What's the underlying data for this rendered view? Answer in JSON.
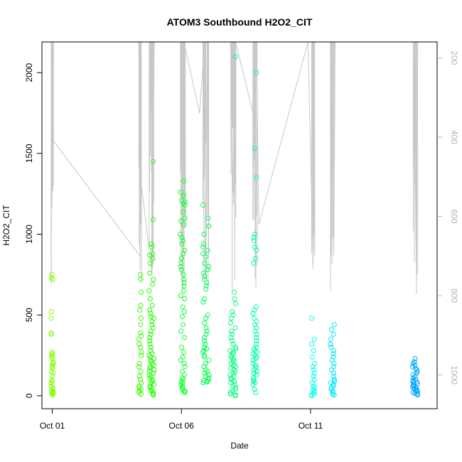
{
  "chart_data": {
    "type": "scatter",
    "title": "ATOM3 Southbound H2O2_CIT",
    "xlabel": "Date",
    "ylabel": "H2O2_CIT",
    "x_ticks": [
      {
        "label": "Oct 01",
        "day": 1.0
      },
      {
        "label": "Oct 06",
        "day": 6.0
      },
      {
        "label": "Oct 11",
        "day": 11.0
      }
    ],
    "xlim_days": [
      0.6,
      15.9
    ],
    "ylim": [
      -80,
      2190
    ],
    "y_ticks": [
      0,
      500,
      1000,
      1500,
      2000
    ],
    "y2_ticks": [
      200,
      400,
      600,
      800,
      1000
    ],
    "y2lim": [
      1085,
      160
    ],
    "y2_reversed": true,
    "grid": false,
    "series": [
      {
        "x_center": 1.0,
        "spread": 0.05,
        "color": "#7fff00",
        "values": [
          750,
          730,
          720,
          520,
          480,
          390,
          380,
          270,
          260,
          250,
          240,
          230,
          210,
          200,
          190,
          180,
          170,
          150,
          140,
          120,
          100,
          90,
          80,
          60,
          50,
          40,
          30,
          25,
          20,
          15,
          10,
          5
        ]
      },
      {
        "x_center": 4.4,
        "spread": 0.05,
        "color": "#3cff00",
        "values": [
          750,
          720,
          640,
          560,
          530,
          480,
          440,
          390,
          370,
          350,
          320,
          300,
          270,
          250,
          200,
          180,
          150,
          120,
          100,
          80,
          60,
          50,
          40,
          30,
          20,
          10
        ]
      },
      {
        "x_center": 4.85,
        "spread": 0.1,
        "color": "#20ff00",
        "values": [
          1450,
          1090,
          940,
          920,
          880,
          870,
          850,
          820,
          760,
          720,
          690,
          650,
          600,
          560,
          530,
          510,
          490,
          480,
          460,
          440,
          420,
          400,
          380,
          360,
          340,
          320,
          300,
          280,
          260,
          250,
          240,
          230,
          220,
          210,
          200,
          190,
          180,
          170,
          160,
          150,
          140,
          130,
          120,
          110,
          100,
          90,
          80,
          70,
          60,
          50,
          40,
          30,
          20,
          10,
          5
        ]
      },
      {
        "x_center": 6.05,
        "spread": 0.1,
        "color": "#10ff30",
        "values": [
          1330,
          1260,
          1240,
          1210,
          1200,
          1190,
          1180,
          1140,
          1100,
          1080,
          1060,
          1000,
          980,
          960,
          940,
          900,
          880,
          850,
          820,
          800,
          780,
          750,
          720,
          700,
          680,
          650,
          620,
          600,
          550,
          520,
          490,
          440,
          400,
          360,
          300,
          270,
          240,
          220,
          200,
          180,
          150,
          130,
          110,
          100,
          90,
          80,
          70,
          60,
          50,
          40,
          30,
          25,
          20
        ]
      },
      {
        "x_center": 6.95,
        "spread": 0.12,
        "color": "#00ff50",
        "values": [
          1180,
          1100,
          1050,
          1000,
          940,
          920,
          900,
          880,
          860,
          820,
          800,
          780,
          760,
          740,
          720,
          700,
          680,
          660,
          600,
          580,
          500,
          480,
          450,
          420,
          400,
          380,
          360,
          340,
          320,
          300,
          290,
          280,
          270,
          250,
          240,
          220,
          200,
          180,
          160,
          150,
          140,
          130,
          120,
          110,
          100,
          95,
          90,
          85,
          80
        ]
      },
      {
        "x_center": 8.0,
        "spread": 0.12,
        "color": "#00ff80",
        "values": [
          2100,
          640,
          600,
          570,
          520,
          500,
          480,
          450,
          420,
          400,
          380,
          360,
          340,
          320,
          300,
          290,
          280,
          270,
          260,
          250,
          240,
          230,
          220,
          210,
          200,
          190,
          180,
          170,
          160,
          150,
          140,
          130,
          120,
          110,
          100,
          90,
          80,
          70,
          60,
          50,
          40,
          30,
          20,
          10,
          5,
          0
        ]
      },
      {
        "x_center": 8.85,
        "spread": 0.08,
        "color": "#00ffa8",
        "values": [
          2000,
          1530,
          1350,
          1000,
          980,
          960,
          920,
          900,
          850,
          820,
          550,
          530,
          510,
          480,
          460,
          440,
          420,
          400,
          380,
          360,
          340,
          320,
          300,
          290,
          280,
          270,
          260,
          250,
          240,
          230,
          220,
          200,
          190,
          180,
          170,
          160,
          150,
          140,
          130,
          110,
          100,
          90,
          80,
          70,
          40,
          20
        ]
      },
      {
        "x_center": 11.1,
        "spread": 0.06,
        "color": "#00ffe8",
        "values": [
          480,
          350,
          320,
          280,
          240,
          200,
          180,
          160,
          140,
          120,
          100,
          80,
          60,
          50,
          40,
          30,
          20,
          10,
          5,
          0
        ]
      },
      {
        "x_center": 11.85,
        "spread": 0.08,
        "color": "#00e8ff",
        "values": [
          440,
          410,
          380,
          350,
          320,
          300,
          280,
          260,
          240,
          220,
          200,
          180,
          160,
          140,
          120,
          100,
          90,
          80,
          70,
          60,
          50,
          40,
          30,
          20,
          10,
          5
        ]
      },
      {
        "x_center": 15.05,
        "spread": 0.1,
        "color": "#00a8ff",
        "values": [
          230,
          210,
          200,
          190,
          180,
          170,
          160,
          150,
          140,
          130,
          120,
          110,
          100,
          95,
          90,
          85,
          80,
          75,
          70,
          65,
          60,
          55,
          50,
          45,
          40,
          35,
          30,
          25,
          20,
          15,
          10,
          5
        ]
      }
    ],
    "altitude_profile": {
      "color": "#c8c8c8",
      "note_secondary_axis": "pressure-like, reversed",
      "x_day": [
        1.0,
        1.0,
        1.0,
        1.05,
        4.4,
        4.4,
        4.45,
        4.85,
        4.85,
        4.9,
        4.95,
        6.0,
        6.05,
        6.1,
        6.7,
        6.9,
        6.95,
        7.0,
        7.9,
        8.0,
        8.1,
        8.85,
        8.9,
        9.0,
        10.9,
        11.1,
        11.15,
        11.8,
        11.9,
        11.95,
        15.0,
        15.1,
        15.15
      ],
      "y2": [
        160,
        520,
        160,
        410,
        700,
        160,
        520,
        740,
        160,
        420,
        160,
        160,
        780,
        160,
        340,
        160,
        760,
        160,
        160,
        540,
        160,
        360,
        160,
        620,
        160,
        720,
        160,
        160,
        700,
        160,
        160,
        770,
        160
      ]
    }
  }
}
